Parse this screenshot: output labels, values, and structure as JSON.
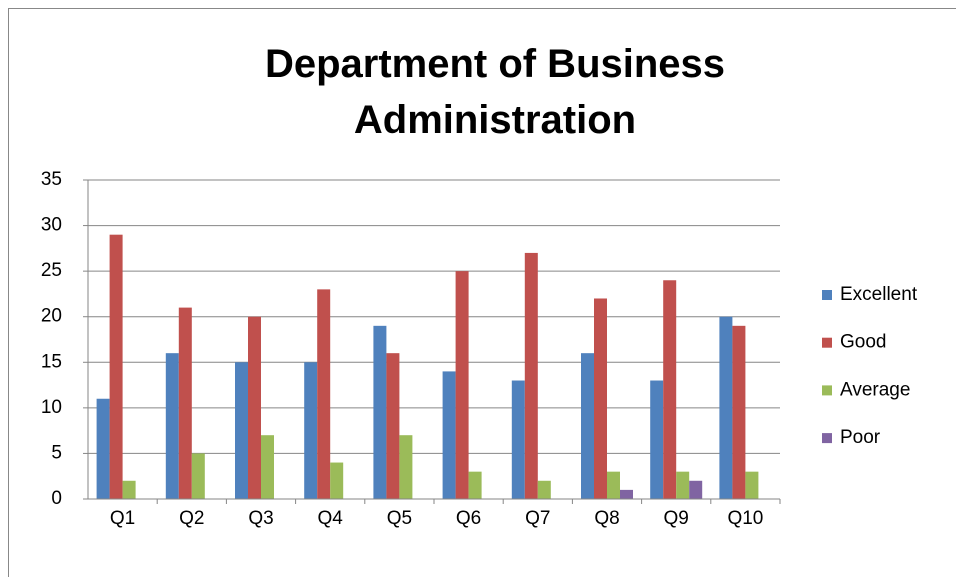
{
  "chart_data": {
    "type": "bar",
    "title": "Department of Business Administration",
    "categories": [
      "Q1",
      "Q2",
      "Q3",
      "Q4",
      "Q5",
      "Q6",
      "Q7",
      "Q8",
      "Q9",
      "Q10"
    ],
    "series": [
      {
        "name": "Excellent",
        "color": "#4f81bd",
        "values": [
          11,
          16,
          15,
          15,
          19,
          14,
          13,
          16,
          13,
          20
        ]
      },
      {
        "name": "Good",
        "color": "#c0504d",
        "values": [
          29,
          21,
          20,
          23,
          16,
          25,
          27,
          22,
          24,
          19
        ]
      },
      {
        "name": "Average",
        "color": "#9bbb59",
        "values": [
          2,
          5,
          7,
          4,
          7,
          3,
          2,
          3,
          3,
          3
        ]
      },
      {
        "name": "Poor",
        "color": "#8064a2",
        "values": [
          0,
          0,
          0,
          0,
          0,
          0,
          0,
          1,
          2,
          0
        ]
      }
    ],
    "ylim": [
      0,
      35
    ],
    "yticks": [
      0,
      5,
      10,
      15,
      20,
      25,
      30,
      35
    ],
    "grid": true,
    "legend": "right"
  }
}
